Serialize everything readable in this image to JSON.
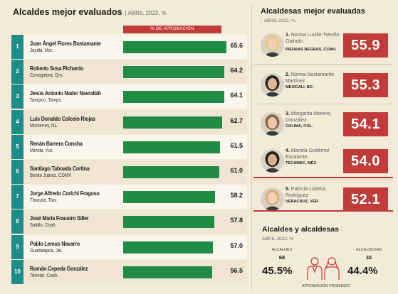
{
  "left": {
    "title": "Alcaldes mejor evaluados",
    "subtitle": "ABRIL 2022, %",
    "column_header": "% DE APROBACIÓN"
  },
  "chart_data": {
    "type": "bar",
    "orientation": "horizontal",
    "title": "Alcaldes mejor evaluados",
    "subtitle": "ABRIL 2022, %",
    "value_label": "% DE APROBACIÓN",
    "xlim": [
      0,
      70
    ],
    "bar_color": "#1f8b45",
    "categories": [
      "Juan Ángel Flores Bustamante",
      "Roberto Sosa Pichardo",
      "Jesús Antonio Nader Nasrallah",
      "Luis Donaldo Colosio Riojas",
      "Renán Barrera Concha",
      "Santiago Taboada Cortina",
      "Jorge Alfredo Corichi Fragoso",
      "José María Fraustro Siller",
      "Pablo Lemus Navarro",
      "Román Cepeda González"
    ],
    "places": [
      "Jojutla, Mor.",
      "Corregidora, Qro.",
      "Tampico, Tamps.",
      "Monterrey, NL.",
      "Mérida, Yuc.",
      "Benito Juárez, CDMX",
      "Tlaxcala, Tlax.",
      "Saltillo, Coah.",
      "Guadalajara, Jal.",
      "Torreón, Coah."
    ],
    "ranks": [
      "1",
      "2",
      "3",
      "4",
      "5",
      "6",
      "7",
      "8",
      "9",
      "10"
    ],
    "values": [
      65.6,
      64.2,
      64.1,
      62.7,
      61.5,
      61.0,
      58.2,
      57.8,
      57.0,
      56.5
    ],
    "value_labels": [
      "65.6",
      "64.2",
      "64.1",
      "62.7",
      "61.5",
      "61.0",
      "58.2",
      "57.8",
      "57.0",
      "56.5"
    ]
  },
  "right": {
    "title": "Alcaldesas mejor evaluadas",
    "subtitle": "ABRIL 2022, %",
    "items": [
      {
        "rank": "1.",
        "name": "Norma Lucille Treviño Galindo",
        "place": "PIEDRAS NEGRAS, COAH.",
        "value": "55.9"
      },
      {
        "rank": "2.",
        "name": "Norma Bustamante Martínez",
        "place": "MEXICALI, BC.",
        "value": "55.3"
      },
      {
        "rank": "3.",
        "name": "Margarita Moreno, González",
        "place": "COLIMA, COL.",
        "value": "54.1"
      },
      {
        "rank": "4.",
        "name": "Mariela Gutiérrez Escalante",
        "place": "TECÁMAC, MÉX",
        "value": "54.0"
      },
      {
        "rank": "5.",
        "name": "Patricia Lobeira Rodríguez",
        "place": "VERACRUZ, VER.",
        "value": "52.1"
      }
    ]
  },
  "summary": {
    "title": "Alcaldes y alcaldesas",
    "subtitle": "ABRIL 2022, %",
    "men_label": "ALCALDES",
    "men_count": "68",
    "men_pct": "45.5%",
    "women_label": "ALCALDESAS",
    "women_count": "32",
    "women_pct": "44.4%",
    "footer": "APROBACIÓN PROMEDIO"
  },
  "colors": {
    "accent_red": "#c13b3a",
    "bar_green": "#1f8b45",
    "rank_teal": "#1f8c88",
    "background": "#f3ead8"
  }
}
